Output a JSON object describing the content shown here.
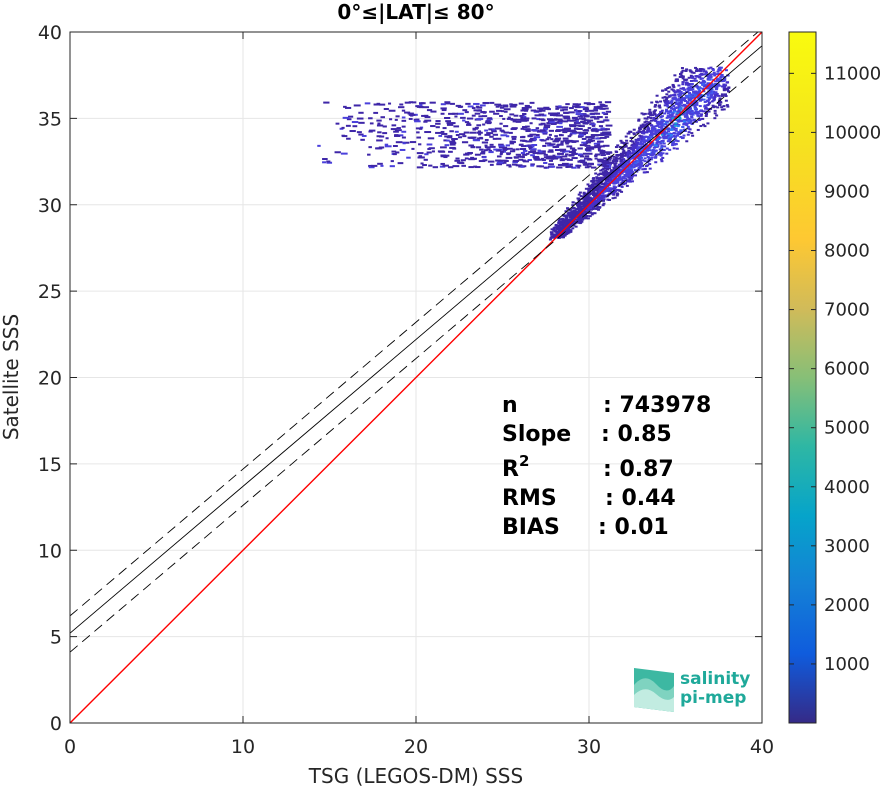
{
  "chart_data": {
    "type": "heatmap",
    "title": "0°≤|LAT|≤ 80°",
    "xlabel": "TSG (LEGOS-DM) SSS",
    "ylabel": "Satellite SSS",
    "xlim": [
      0,
      40
    ],
    "ylim": [
      0,
      40
    ],
    "xticks": [
      "0",
      "10",
      "20",
      "30",
      "40"
    ],
    "yticks": [
      "0",
      "5",
      "10",
      "15",
      "20",
      "25",
      "30",
      "35",
      "40"
    ],
    "grid": true,
    "colorbar": {
      "ticks": [
        "1000",
        "2000",
        "3000",
        "4000",
        "5000",
        "6000",
        "7000",
        "8000",
        "9000",
        "10000",
        "11000"
      ],
      "range": [
        0,
        11700
      ],
      "colormap": "parula"
    },
    "lines": {
      "identity": {
        "slope": 1,
        "intercept": 0,
        "color": "#ff0000"
      },
      "fit": {
        "slope": 0.85,
        "intercept": 5.2,
        "color": "#000000"
      },
      "fit_upper": {
        "slope": 0.85,
        "intercept": 6.2,
        "style": "dashed"
      },
      "fit_lower": {
        "slope": 0.85,
        "intercept": 4.1,
        "style": "dashed"
      }
    },
    "density_region": {
      "x_range": [
        13,
        38
      ],
      "y_range": [
        28,
        38
      ],
      "core_center": [
        35,
        35
      ]
    },
    "stats": [
      {
        "label": "n",
        "value": ": 743978"
      },
      {
        "label": "Slope",
        "value": ": 0.85"
      },
      {
        "label": "R",
        "sup": "2",
        "value": ": 0.87"
      },
      {
        "label": "RMS",
        "value": ": 0.44"
      },
      {
        "label": "BIAS",
        "value": ": 0.01"
      }
    ]
  },
  "logo": {
    "line1": "salinity",
    "line2": "pi-mep"
  }
}
